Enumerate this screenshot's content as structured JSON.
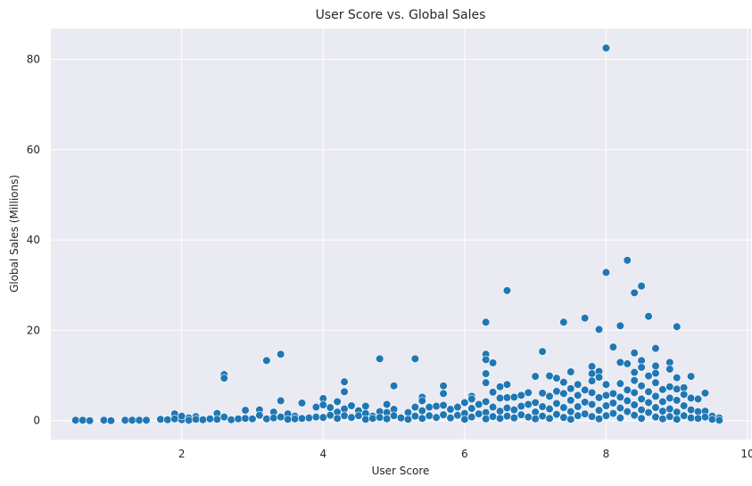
{
  "chart_data": {
    "type": "scatter",
    "title": "User Score vs. Global Sales",
    "xlabel": "User Score",
    "ylabel": "Global Sales (Millions)",
    "xlim": [
      0.15,
      10.05
    ],
    "ylim": [
      -4.2,
      86.8
    ],
    "xticks": [
      2,
      4,
      6,
      8,
      10
    ],
    "yticks": [
      0,
      20,
      40,
      60,
      80
    ],
    "grid": true,
    "style": {
      "background": "#eaeaf2",
      "point_color": "#1f77b4"
    },
    "series": [
      {
        "points": [
          [
            0.5,
            0.1
          ],
          [
            0.6,
            0.1
          ],
          [
            0.7,
            0.0
          ],
          [
            0.9,
            0.1
          ],
          [
            1.0,
            0.0
          ],
          [
            1.2,
            0.1
          ],
          [
            1.3,
            0.1
          ],
          [
            1.4,
            0.1
          ],
          [
            1.5,
            0.1
          ],
          [
            1.7,
            0.3
          ],
          [
            1.8,
            0.2
          ],
          [
            1.9,
            1.5
          ],
          [
            1.9,
            0.4
          ],
          [
            2.0,
            0.2
          ],
          [
            2.0,
            1.0
          ],
          [
            2.1,
            0.6
          ],
          [
            2.1,
            0.1
          ],
          [
            2.2,
            0.9
          ],
          [
            2.2,
            0.3
          ],
          [
            2.3,
            0.2
          ],
          [
            2.4,
            0.4
          ],
          [
            2.5,
            1.6
          ],
          [
            2.5,
            0.3
          ],
          [
            2.6,
            10.2
          ],
          [
            2.6,
            9.4
          ],
          [
            2.6,
            0.8
          ],
          [
            2.7,
            0.2
          ],
          [
            2.8,
            0.4
          ],
          [
            2.9,
            2.3
          ],
          [
            2.9,
            0.5
          ],
          [
            3.0,
            0.4
          ],
          [
            3.1,
            2.4
          ],
          [
            3.1,
            1.2
          ],
          [
            3.2,
            13.3
          ],
          [
            3.2,
            0.4
          ],
          [
            3.3,
            1.9
          ],
          [
            3.3,
            0.6
          ],
          [
            3.4,
            14.7
          ],
          [
            3.4,
            4.4
          ],
          [
            3.4,
            0.8
          ],
          [
            3.5,
            1.5
          ],
          [
            3.5,
            0.3
          ],
          [
            3.6,
            1.0
          ],
          [
            3.6,
            0.4
          ],
          [
            3.7,
            3.9
          ],
          [
            3.7,
            0.5
          ],
          [
            3.8,
            0.6
          ],
          [
            3.9,
            3.0
          ],
          [
            3.9,
            0.8
          ],
          [
            4.0,
            4.9
          ],
          [
            4.0,
            3.5
          ],
          [
            4.0,
            0.7
          ],
          [
            4.1,
            2.9
          ],
          [
            4.1,
            1.2
          ],
          [
            4.2,
            4.2
          ],
          [
            4.2,
            1.9
          ],
          [
            4.2,
            0.5
          ],
          [
            4.3,
            8.6
          ],
          [
            4.3,
            6.4
          ],
          [
            4.3,
            2.6
          ],
          [
            4.3,
            1.1
          ],
          [
            4.4,
            3.3
          ],
          [
            4.4,
            0.7
          ],
          [
            4.5,
            2.2
          ],
          [
            4.5,
            1.1
          ],
          [
            4.6,
            3.2
          ],
          [
            4.6,
            1.6
          ],
          [
            4.6,
            0.3
          ],
          [
            4.7,
            1.0
          ],
          [
            4.7,
            0.5
          ],
          [
            4.8,
            13.7
          ],
          [
            4.8,
            2.0
          ],
          [
            4.8,
            0.7
          ],
          [
            4.9,
            3.6
          ],
          [
            4.9,
            1.8
          ],
          [
            4.9,
            0.4
          ],
          [
            5.0,
            7.7
          ],
          [
            5.0,
            2.5
          ],
          [
            5.0,
            1.1
          ],
          [
            5.1,
            0.6
          ],
          [
            5.2,
            1.8
          ],
          [
            5.2,
            0.3
          ],
          [
            5.3,
            13.7
          ],
          [
            5.3,
            3.0
          ],
          [
            5.3,
            1.0
          ],
          [
            5.4,
            5.2
          ],
          [
            5.4,
            4.4
          ],
          [
            5.4,
            2.2
          ],
          [
            5.4,
            0.5
          ],
          [
            5.5,
            3.0
          ],
          [
            5.5,
            1.1
          ],
          [
            5.6,
            3.2
          ],
          [
            5.6,
            0.7
          ],
          [
            5.7,
            7.7
          ],
          [
            5.7,
            6.0
          ],
          [
            5.7,
            3.4
          ],
          [
            5.7,
            1.3
          ],
          [
            5.8,
            2.5
          ],
          [
            5.8,
            0.6
          ],
          [
            5.9,
            3.0
          ],
          [
            5.9,
            1.2
          ],
          [
            6.0,
            4.0
          ],
          [
            6.0,
            1.6
          ],
          [
            6.0,
            0.3
          ],
          [
            6.1,
            5.4
          ],
          [
            6.1,
            4.8
          ],
          [
            6.1,
            2.7
          ],
          [
            6.1,
            0.8
          ],
          [
            6.2,
            3.6
          ],
          [
            6.2,
            1.5
          ],
          [
            6.3,
            21.8
          ],
          [
            6.3,
            14.7
          ],
          [
            6.3,
            13.5
          ],
          [
            6.3,
            10.4
          ],
          [
            6.3,
            8.4
          ],
          [
            6.3,
            4.2
          ],
          [
            6.3,
            1.8
          ],
          [
            6.3,
            0.4
          ],
          [
            6.4,
            12.8
          ],
          [
            6.4,
            6.3
          ],
          [
            6.4,
            3.0
          ],
          [
            6.4,
            0.9
          ],
          [
            6.5,
            7.5
          ],
          [
            6.5,
            5.0
          ],
          [
            6.5,
            2.1
          ],
          [
            6.5,
            0.5
          ],
          [
            6.6,
            28.8
          ],
          [
            6.6,
            8.0
          ],
          [
            6.6,
            5.1
          ],
          [
            6.6,
            2.8
          ],
          [
            6.6,
            1.0
          ],
          [
            6.7,
            5.2
          ],
          [
            6.7,
            2.4
          ],
          [
            6.7,
            0.6
          ],
          [
            6.8,
            5.6
          ],
          [
            6.8,
            3.2
          ],
          [
            6.8,
            1.3
          ],
          [
            6.9,
            6.2
          ],
          [
            6.9,
            3.6
          ],
          [
            6.9,
            0.8
          ],
          [
            7.0,
            9.8
          ],
          [
            7.0,
            4.0
          ],
          [
            7.0,
            1.9
          ],
          [
            7.0,
            0.4
          ],
          [
            7.1,
            15.3
          ],
          [
            7.1,
            6.1
          ],
          [
            7.1,
            3.1
          ],
          [
            7.1,
            1.0
          ],
          [
            7.2,
            9.9
          ],
          [
            7.2,
            5.4
          ],
          [
            7.2,
            2.6
          ],
          [
            7.2,
            0.5
          ],
          [
            7.3,
            9.4
          ],
          [
            7.3,
            6.5
          ],
          [
            7.3,
            3.8
          ],
          [
            7.3,
            1.4
          ],
          [
            7.4,
            21.8
          ],
          [
            7.4,
            8.5
          ],
          [
            7.4,
            6.0
          ],
          [
            7.4,
            2.9
          ],
          [
            7.4,
            0.7
          ],
          [
            7.5,
            10.8
          ],
          [
            7.5,
            7.1
          ],
          [
            7.5,
            4.5
          ],
          [
            7.5,
            2.0
          ],
          [
            7.5,
            0.3
          ],
          [
            7.6,
            8.0
          ],
          [
            7.6,
            5.6
          ],
          [
            7.6,
            3.1
          ],
          [
            7.6,
            1.1
          ],
          [
            7.7,
            22.7
          ],
          [
            7.7,
            6.8
          ],
          [
            7.7,
            4.1
          ],
          [
            7.7,
            1.5
          ],
          [
            7.8,
            12.0
          ],
          [
            7.8,
            10.4
          ],
          [
            7.8,
            8.8
          ],
          [
            7.8,
            6.2
          ],
          [
            7.8,
            3.6
          ],
          [
            7.8,
            0.9
          ],
          [
            7.9,
            20.2
          ],
          [
            7.9,
            10.9
          ],
          [
            7.9,
            9.6
          ],
          [
            7.9,
            5.1
          ],
          [
            7.9,
            2.3
          ],
          [
            7.9,
            0.4
          ],
          [
            8.0,
            82.5
          ],
          [
            8.0,
            32.8
          ],
          [
            8.0,
            8.0
          ],
          [
            8.0,
            5.6
          ],
          [
            8.0,
            3.3
          ],
          [
            8.0,
            1.1
          ],
          [
            8.1,
            16.3
          ],
          [
            8.1,
            6.0
          ],
          [
            8.1,
            3.9
          ],
          [
            8.1,
            1.6
          ],
          [
            8.2,
            21.0
          ],
          [
            8.2,
            12.9
          ],
          [
            8.2,
            8.2
          ],
          [
            8.2,
            5.2
          ],
          [
            8.2,
            2.8
          ],
          [
            8.2,
            0.6
          ],
          [
            8.3,
            35.5
          ],
          [
            8.3,
            12.6
          ],
          [
            8.3,
            6.8
          ],
          [
            8.3,
            4.4
          ],
          [
            8.3,
            2.0
          ],
          [
            8.4,
            28.3
          ],
          [
            8.4,
            15.0
          ],
          [
            8.4,
            10.7
          ],
          [
            8.4,
            8.9
          ],
          [
            8.4,
            6.2
          ],
          [
            8.4,
            3.5
          ],
          [
            8.4,
            1.2
          ],
          [
            8.5,
            29.8
          ],
          [
            8.5,
            13.3
          ],
          [
            8.5,
            11.8
          ],
          [
            8.5,
            7.7
          ],
          [
            8.5,
            4.8
          ],
          [
            8.5,
            2.4
          ],
          [
            8.5,
            0.5
          ],
          [
            8.6,
            23.1
          ],
          [
            8.6,
            9.9
          ],
          [
            8.6,
            6.4
          ],
          [
            8.6,
            4.0
          ],
          [
            8.6,
            1.8
          ],
          [
            8.7,
            16.0
          ],
          [
            8.7,
            12.1
          ],
          [
            8.7,
            10.5
          ],
          [
            8.7,
            8.4
          ],
          [
            8.7,
            5.4
          ],
          [
            8.7,
            2.9
          ],
          [
            8.7,
            0.8
          ],
          [
            8.8,
            6.9
          ],
          [
            8.8,
            4.2
          ],
          [
            8.8,
            2.1
          ],
          [
            8.8,
            0.4
          ],
          [
            8.9,
            12.9
          ],
          [
            8.9,
            11.4
          ],
          [
            8.9,
            7.5
          ],
          [
            8.9,
            5.0
          ],
          [
            8.9,
            2.6
          ],
          [
            8.9,
            0.9
          ],
          [
            9.0,
            20.8
          ],
          [
            9.0,
            9.5
          ],
          [
            9.0,
            7.0
          ],
          [
            9.0,
            4.5
          ],
          [
            9.0,
            1.9
          ],
          [
            9.0,
            0.3
          ],
          [
            9.1,
            7.3
          ],
          [
            9.1,
            5.8
          ],
          [
            9.1,
            3.3
          ],
          [
            9.1,
            1.1
          ],
          [
            9.2,
            9.8
          ],
          [
            9.2,
            5.0
          ],
          [
            9.2,
            2.4
          ],
          [
            9.2,
            0.6
          ],
          [
            9.3,
            4.8
          ],
          [
            9.3,
            2.0
          ],
          [
            9.3,
            0.5
          ],
          [
            9.4,
            6.1
          ],
          [
            9.4,
            2.1
          ],
          [
            9.4,
            0.8
          ],
          [
            9.5,
            1.0
          ],
          [
            9.5,
            0.3
          ],
          [
            9.6,
            0.6
          ],
          [
            9.6,
            0.1
          ]
        ]
      }
    ]
  }
}
